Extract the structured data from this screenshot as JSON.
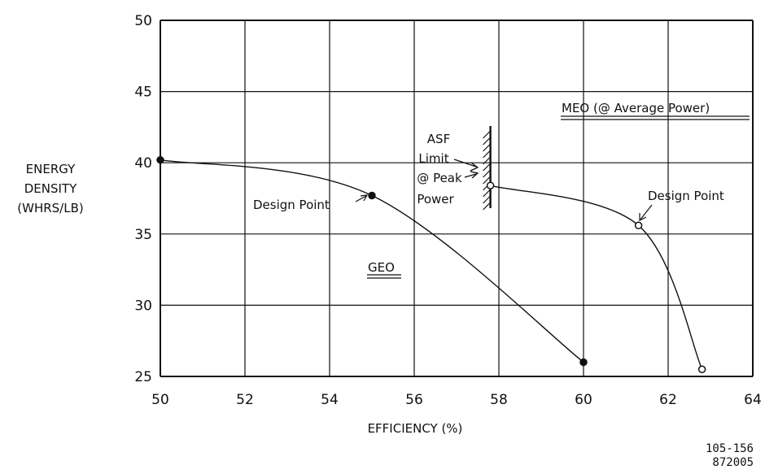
{
  "chart_data": {
    "type": "line",
    "title": "",
    "xlabel": "EFFICIENCY (%)",
    "ylabel": [
      "ENERGY",
      "DENSITY",
      "(WHRS/LB)"
    ],
    "xlim": [
      50,
      64
    ],
    "ylim": [
      25,
      50
    ],
    "x_ticks": [
      "50",
      "52",
      "54",
      "56",
      "58",
      "60",
      "62",
      "64"
    ],
    "y_ticks": [
      "50",
      "45",
      "40",
      "35",
      "30",
      "25"
    ],
    "grid": true,
    "series": [
      {
        "name": "GEO",
        "marker": "filled-circle",
        "points": [
          {
            "x": 50.0,
            "y": 40.2
          },
          {
            "x": 55.0,
            "y": 37.7
          },
          {
            "x": 60.0,
            "y": 26.0
          }
        ]
      },
      {
        "name": "MEO (@ Average Power)",
        "marker": "open-circle",
        "points": [
          {
            "x": 57.8,
            "y": 38.4
          },
          {
            "x": 61.3,
            "y": 35.6
          },
          {
            "x": 62.8,
            "y": 25.5
          }
        ]
      }
    ],
    "annotations": {
      "design_point_geo": "Design Point",
      "design_point_meo": "Design Point",
      "asf_limit": [
        "ASF",
        "Limit",
        "@ Peak",
        "Power"
      ],
      "geo_label": "GEO",
      "meo_label": "MEO (@ Average Power)"
    },
    "asf_limit_x": 57.8,
    "figure_code": [
      "105-156",
      "872005"
    ]
  }
}
